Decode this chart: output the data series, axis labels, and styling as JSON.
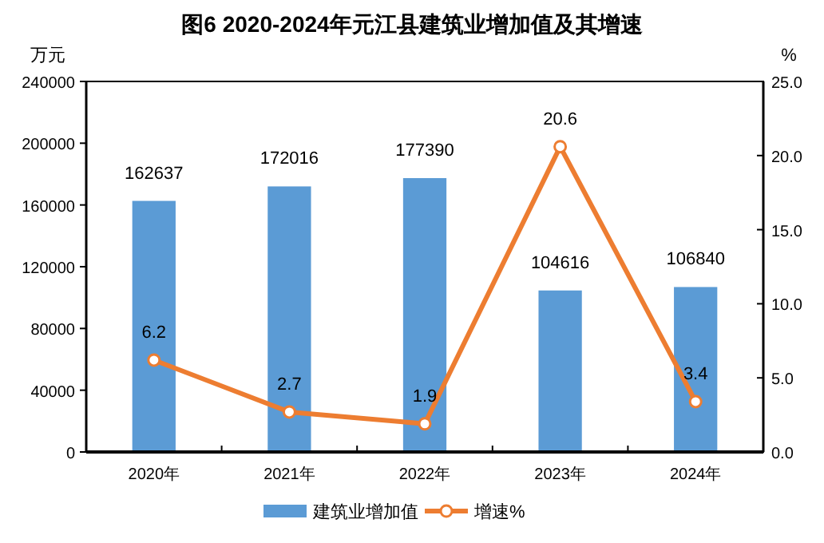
{
  "chart_data": {
    "type": "bar",
    "title": "图6  2020-2024年元江县建筑业增加值及其增速",
    "ylabel": "万元",
    "y2label": "%",
    "categories": [
      "2020年",
      "2021年",
      "2022年",
      "2023年",
      "2024年"
    ],
    "series": [
      {
        "name": "建筑业增加值",
        "color": "#5b9bd5",
        "values": [
          162637,
          172016,
          177390,
          104616,
          106840
        ]
      },
      {
        "name": "增速%",
        "type": "line",
        "axis": "y2",
        "color": "#ed7d31",
        "marker": "circle",
        "values": [
          6.2,
          2.7,
          1.9,
          20.6,
          3.4
        ]
      }
    ],
    "ylim": [
      0,
      240000
    ],
    "yticks": [
      0,
      40000,
      80000,
      120000,
      160000,
      200000,
      240000
    ],
    "y2lim": [
      0,
      25
    ],
    "y2ticks": [
      {
        "value": 0,
        "label": "0.0"
      },
      {
        "value": 5,
        "label": "5.0"
      },
      {
        "value": 10,
        "label": "10.0"
      },
      {
        "value": 15,
        "label": "15.0"
      },
      {
        "value": 20,
        "label": "20.0"
      },
      {
        "value": 25,
        "label": "25.0"
      }
    ],
    "data_labels": true,
    "legend": "bottom",
    "grid": false
  }
}
